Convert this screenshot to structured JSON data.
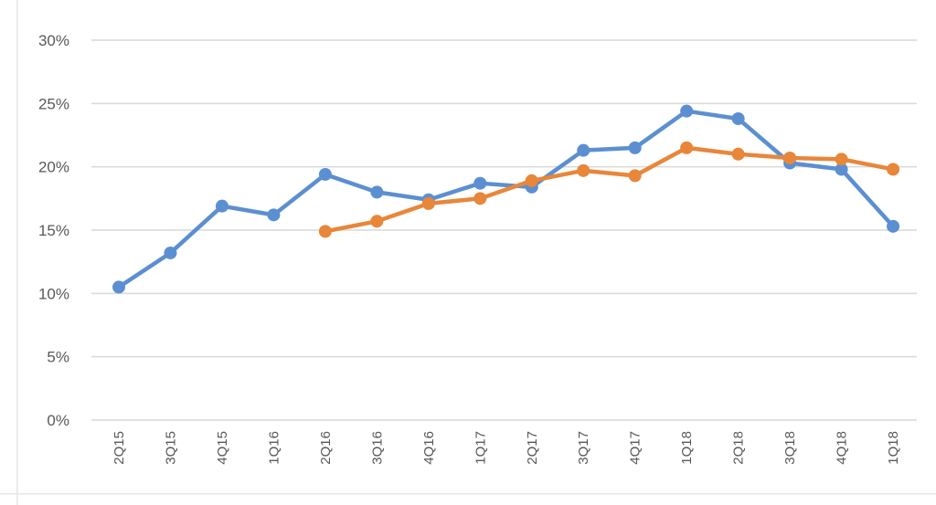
{
  "chart_data": {
    "type": "line",
    "title": "",
    "xlabel": "",
    "ylabel": "",
    "categories": [
      "2Q15",
      "3Q15",
      "4Q15",
      "1Q16",
      "2Q16",
      "3Q16",
      "4Q16",
      "1Q17",
      "2Q17",
      "3Q17",
      "4Q17",
      "1Q18",
      "2Q18",
      "3Q18",
      "4Q18",
      "1Q18"
    ],
    "y_ticks": [
      "0%",
      "5%",
      "10%",
      "15%",
      "20%",
      "25%",
      "30%"
    ],
    "y_tick_values": [
      0,
      5,
      10,
      15,
      20,
      25,
      30
    ],
    "ylim": [
      0,
      30
    ],
    "grid": true,
    "legend": "none",
    "series": [
      {
        "color": "#5b8fd1",
        "values": [
          10.5,
          13.2,
          16.9,
          16.2,
          19.4,
          18.0,
          17.4,
          18.7,
          18.4,
          21.3,
          21.5,
          24.4,
          23.8,
          20.3,
          19.8,
          15.3
        ]
      },
      {
        "color": "#e8863a",
        "values": [
          null,
          null,
          null,
          null,
          14.9,
          15.7,
          17.1,
          17.5,
          18.9,
          19.7,
          19.3,
          21.5,
          21.0,
          20.7,
          20.6,
          19.8
        ]
      }
    ]
  }
}
